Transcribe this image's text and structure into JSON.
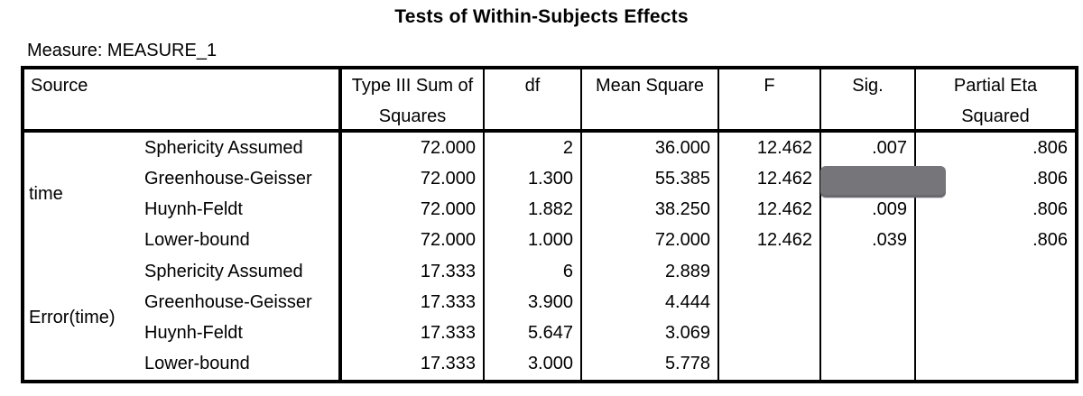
{
  "title": "Tests of Within-Subjects Effects",
  "measure_label": "Measure: MEASURE_1",
  "colors": {
    "text": "#000000",
    "border": "#000000",
    "background": "#ffffff",
    "redaction_box": "#76767a"
  },
  "redaction": {
    "covers": "sig value of time / Greenhouse-Geisser row"
  },
  "chart_data": {
    "type": "table",
    "title": "Tests of Within-Subjects Effects",
    "measure": "MEASURE_1",
    "headers": [
      {
        "key": "source",
        "label": "Source",
        "lines": [
          "Source"
        ]
      },
      {
        "key": "type_iii_ss",
        "label": "Type III Sum of Squares",
        "lines": [
          "Type III Sum of",
          "Squares"
        ]
      },
      {
        "key": "df",
        "label": "df",
        "lines": [
          "df"
        ]
      },
      {
        "key": "mean_square",
        "label": "Mean Square",
        "lines": [
          "Mean Square"
        ]
      },
      {
        "key": "f",
        "label": "F",
        "lines": [
          "F"
        ]
      },
      {
        "key": "sig",
        "label": "Sig.",
        "lines": [
          "Sig."
        ]
      },
      {
        "key": "partial_eta_squared",
        "label": "Partial Eta Squared",
        "lines": [
          "Partial Eta",
          "Squared"
        ]
      }
    ],
    "value_columns": [
      "type_iii_ss",
      "df",
      "mean_square",
      "f",
      "sig",
      "partial_eta_squared"
    ],
    "groups": [
      {
        "source": "time",
        "rows": [
          {
            "method": "Sphericity Assumed",
            "type_iii_ss": "72.000",
            "df": "2",
            "mean_square": "36.000",
            "f": "12.462",
            "sig": ".007",
            "partial_eta_squared": ".806",
            "sig_redacted": false
          },
          {
            "method": "Greenhouse-Geisser",
            "type_iii_ss": "72.000",
            "df": "1.300",
            "mean_square": "55.385",
            "f": "12.462",
            "sig": "",
            "partial_eta_squared": ".806",
            "sig_redacted": true
          },
          {
            "method": "Huynh-Feldt",
            "type_iii_ss": "72.000",
            "df": "1.882",
            "mean_square": "38.250",
            "f": "12.462",
            "sig": ".009",
            "partial_eta_squared": ".806",
            "sig_redacted": false
          },
          {
            "method": "Lower-bound",
            "type_iii_ss": "72.000",
            "df": "1.000",
            "mean_square": "72.000",
            "f": "12.462",
            "sig": ".039",
            "partial_eta_squared": ".806",
            "sig_redacted": false
          }
        ]
      },
      {
        "source": "Error(time)",
        "rows": [
          {
            "method": "Sphericity Assumed",
            "type_iii_ss": "17.333",
            "df": "6",
            "mean_square": "2.889",
            "f": "",
            "sig": "",
            "partial_eta_squared": "",
            "sig_redacted": false
          },
          {
            "method": "Greenhouse-Geisser",
            "type_iii_ss": "17.333",
            "df": "3.900",
            "mean_square": "4.444",
            "f": "",
            "sig": "",
            "partial_eta_squared": "",
            "sig_redacted": false
          },
          {
            "method": "Huynh-Feldt",
            "type_iii_ss": "17.333",
            "df": "5.647",
            "mean_square": "3.069",
            "f": "",
            "sig": "",
            "partial_eta_squared": "",
            "sig_redacted": false
          },
          {
            "method": "Lower-bound",
            "type_iii_ss": "17.333",
            "df": "3.000",
            "mean_square": "5.778",
            "f": "",
            "sig": "",
            "partial_eta_squared": "",
            "sig_redacted": false
          }
        ]
      }
    ]
  }
}
